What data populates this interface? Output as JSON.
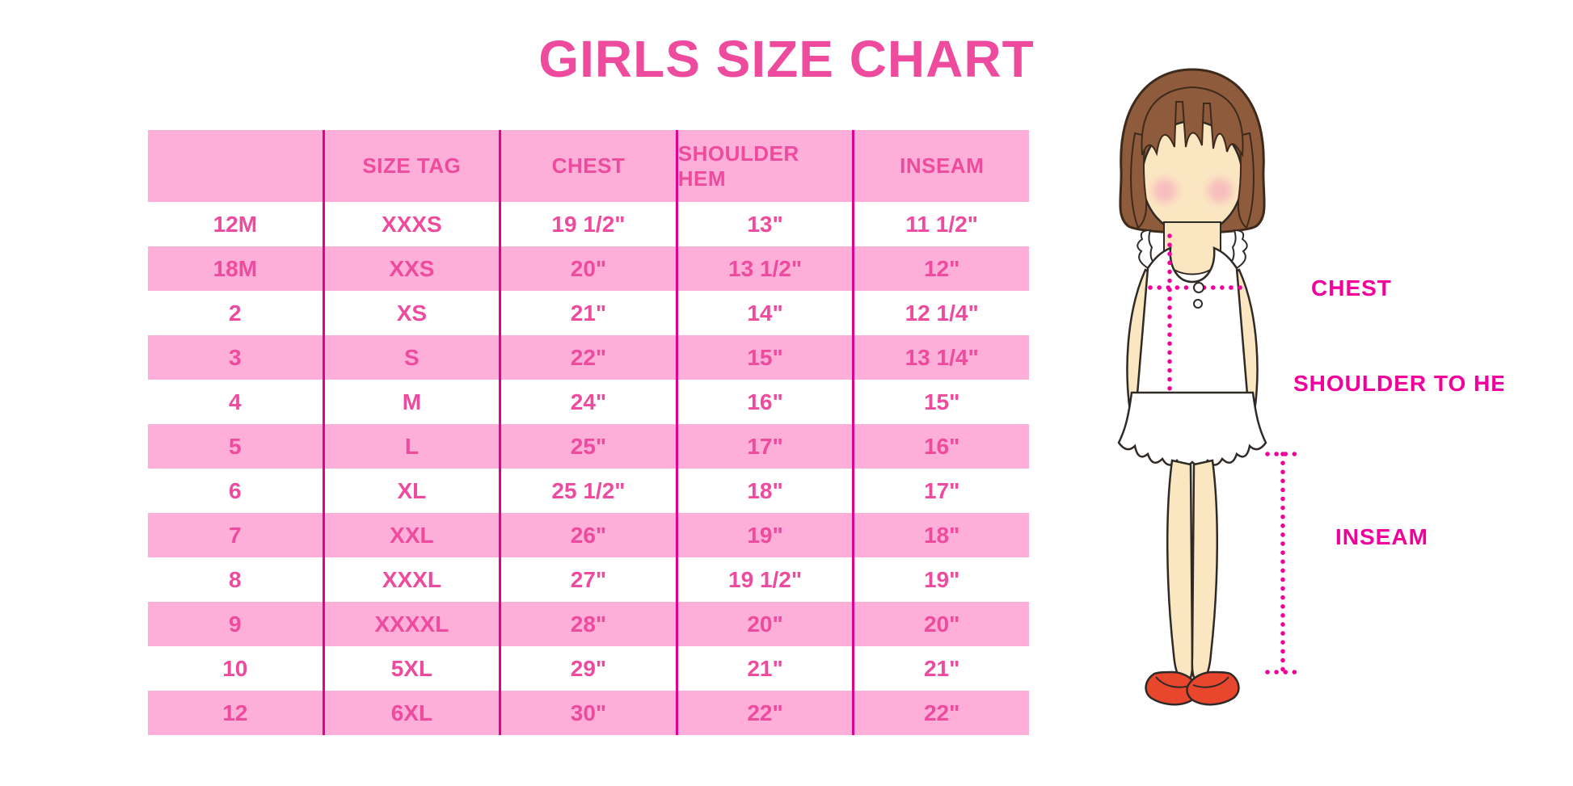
{
  "page": {
    "title": "GIRLS SIZE CHART"
  },
  "colors": {
    "row_pink": "#fdaed9",
    "text_pink": "#ee4a9e",
    "divider_magenta": "#e2008f",
    "label_magenta": "#f2009c",
    "hair_brown": "#8e5c3d",
    "skin": "#fbe6c2",
    "blush": "#f4a9bb",
    "shoe_red": "#e8472e"
  },
  "table": {
    "headers": [
      "",
      "SIZE TAG",
      "CHEST",
      "SHOULDER HEM",
      "INSEAM"
    ],
    "rows": [
      [
        "12M",
        "XXXS",
        "19 1/2\"",
        "13\"",
        "11 1/2\""
      ],
      [
        "18M",
        "XXS",
        "20\"",
        "13 1/2\"",
        "12\""
      ],
      [
        "2",
        "XS",
        "21\"",
        "14\"",
        "12 1/4\""
      ],
      [
        "3",
        "S",
        "22\"",
        "15\"",
        "13 1/4\""
      ],
      [
        "4",
        "M",
        "24\"",
        "16\"",
        "15\""
      ],
      [
        "5",
        "L",
        "25\"",
        "17\"",
        "16\""
      ],
      [
        "6",
        "XL",
        "25 1/2\"",
        "18\"",
        "17\""
      ],
      [
        "7",
        "XXL",
        "26\"",
        "19\"",
        "18\""
      ],
      [
        "8",
        "XXXL",
        "27\"",
        "19 1/2\"",
        "19\""
      ],
      [
        "9",
        "XXXXL",
        "28\"",
        "20\"",
        "20\""
      ],
      [
        "10",
        "5XL",
        "29\"",
        "21\"",
        "21\""
      ],
      [
        "12",
        "6XL",
        "30\"",
        "22\"",
        "22\""
      ]
    ]
  },
  "figure": {
    "labels": {
      "chest": "CHEST",
      "shoulder_to_hem": "SHOULDER TO HEM",
      "inseam": "INSEAM"
    }
  },
  "chart_data": {
    "type": "table",
    "title": "GIRLS SIZE CHART",
    "columns": [
      "",
      "SIZE TAG",
      "CHEST",
      "SHOULDER HEM",
      "INSEAM"
    ],
    "rows": [
      [
        "12M",
        "XXXS",
        "19 1/2\"",
        "13\"",
        "11 1/2\""
      ],
      [
        "18M",
        "XXS",
        "20\"",
        "13 1/2\"",
        "12\""
      ],
      [
        "2",
        "XS",
        "21\"",
        "14\"",
        "12 1/4\""
      ],
      [
        "3",
        "S",
        "22\"",
        "15\"",
        "13 1/4\""
      ],
      [
        "4",
        "M",
        "24\"",
        "16\"",
        "15\""
      ],
      [
        "5",
        "L",
        "25\"",
        "17\"",
        "16\""
      ],
      [
        "6",
        "XL",
        "25 1/2\"",
        "18\"",
        "17\""
      ],
      [
        "7",
        "XXL",
        "26\"",
        "19\"",
        "18\""
      ],
      [
        "8",
        "XXXL",
        "27\"",
        "19 1/2\"",
        "19\""
      ],
      [
        "9",
        "XXXXL",
        "28\"",
        "20\"",
        "20\""
      ],
      [
        "10",
        "5XL",
        "29\"",
        "21\"",
        "21\""
      ],
      [
        "12",
        "6XL",
        "30\"",
        "22\"",
        "22\""
      ]
    ],
    "annotations": [
      "CHEST",
      "SHOULDER TO HEM",
      "INSEAM"
    ],
    "legend_position": "none",
    "grid": "column-dividers"
  }
}
